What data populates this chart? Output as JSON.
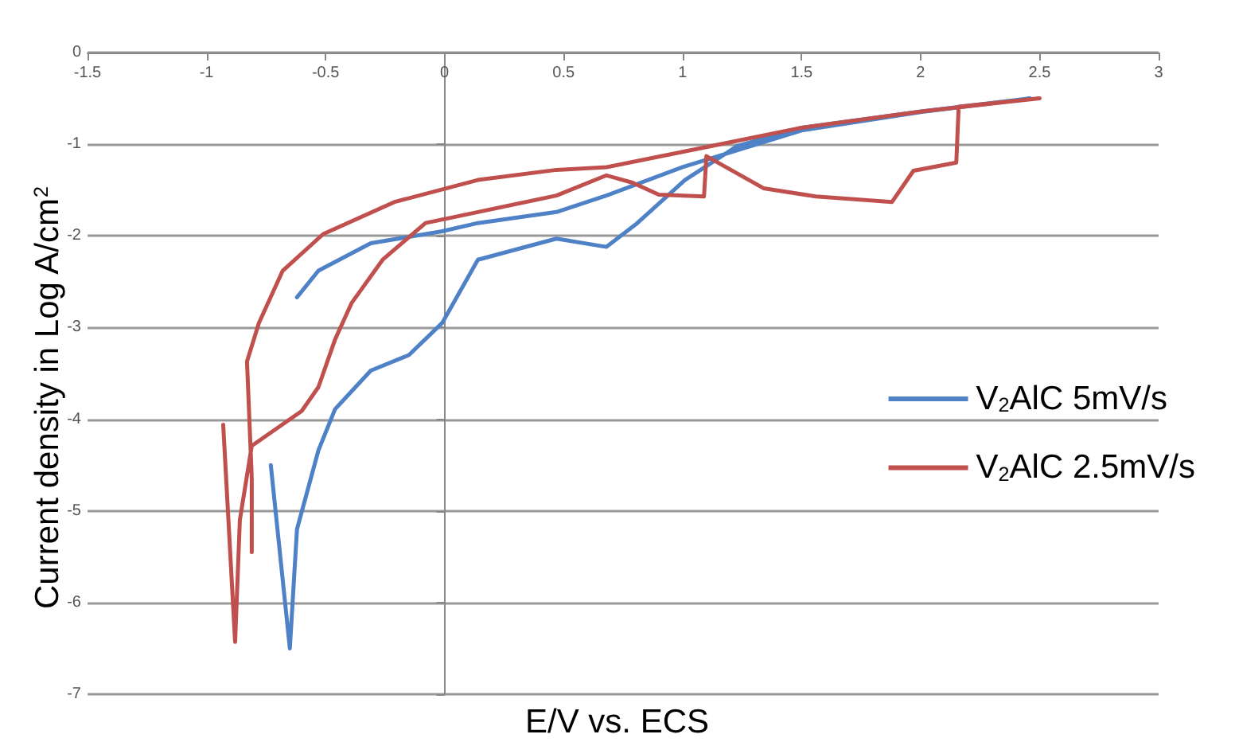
{
  "chart_data": {
    "type": "line",
    "xlabel": "E/V vs. ECS",
    "ylabel": "Current density in Log A/cm$^{2}$",
    "xlim": [
      -1.5,
      3
    ],
    "xticks": [
      -1.5,
      -1,
      -0.5,
      0,
      0.5,
      1,
      1.5,
      2,
      2.5,
      3
    ],
    "ylim": [
      -7,
      0
    ],
    "yticks": [
      -7,
      -6,
      -5,
      -4,
      -3,
      -2,
      -1,
      0
    ],
    "grid": "y",
    "legend": "right",
    "marker": "none",
    "line_style": "solid",
    "series": [
      {
        "name": "V$_{2}$AlC 5mV/s",
        "color": "#4f81c7",
        "x": [
          -0.73,
          -0.65,
          -0.62,
          -0.53,
          -0.46,
          -0.31,
          -0.15,
          -0.01,
          0.14,
          0.47,
          0.68,
          0.81,
          1.01,
          1.23,
          1.5,
          2.01,
          2.46,
          2.0,
          1.5,
          1.0,
          0.68,
          0.47,
          0.14,
          -0.01,
          -0.31,
          -0.53,
          -0.62
        ],
        "values": [
          -4.5,
          -6.5,
          -5.2,
          -4.34,
          -3.89,
          -3.47,
          -3.3,
          -2.95,
          -2.26,
          -2.03,
          -2.12,
          -1.86,
          -1.39,
          -1.02,
          -0.82,
          -0.64,
          -0.5,
          -0.65,
          -0.85,
          -1.25,
          -1.56,
          -1.74,
          -1.86,
          -1.95,
          -2.08,
          -2.38,
          -2.67
        ]
      },
      {
        "name": "V$_{2}$AlC 2.5mV/s",
        "color": "#c0504d",
        "x": [
          -0.93,
          -0.88,
          -0.86,
          -0.81,
          -0.6,
          -0.53,
          -0.46,
          -0.39,
          -0.26,
          -0.08,
          0.14,
          0.47,
          0.68,
          0.79,
          0.9,
          1.09,
          1.1,
          1.34,
          1.56,
          1.88,
          1.97,
          2.15,
          2.16,
          2.5,
          2.01,
          1.5,
          1.12,
          0.68,
          0.47,
          0.14,
          -0.21,
          -0.51,
          -0.68,
          -0.78,
          -0.83,
          -0.81,
          -0.81
        ],
        "values": [
          -4.06,
          -6.43,
          -5.1,
          -4.29,
          -3.91,
          -3.65,
          -3.13,
          -2.73,
          -2.26,
          -1.86,
          -1.74,
          -1.56,
          -1.34,
          -1.42,
          -1.55,
          -1.57,
          -1.13,
          -1.48,
          -1.57,
          -1.63,
          -1.29,
          -1.2,
          -0.59,
          -0.5,
          -0.64,
          -0.82,
          -1.02,
          -1.25,
          -1.28,
          -1.39,
          -1.63,
          -1.98,
          -2.38,
          -2.95,
          -3.37,
          -4.64,
          -5.45
        ]
      }
    ]
  }
}
